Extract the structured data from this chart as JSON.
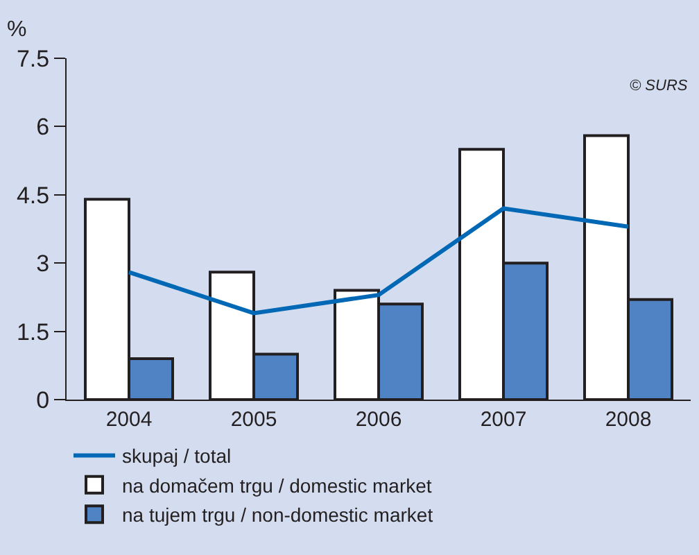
{
  "chart_data": {
    "type": "bar",
    "ylabel": "%",
    "categories": [
      "2004",
      "2005",
      "2006",
      "2007",
      "2008"
    ],
    "series": [
      {
        "name": "skupaj / total",
        "type": "line",
        "color": "#0068b4",
        "values": [
          2.8,
          1.9,
          2.3,
          4.2,
          3.8
        ]
      },
      {
        "name": "na domačem trgu / domestic market",
        "color": "#ffffff",
        "values": [
          4.4,
          2.8,
          2.4,
          5.5,
          5.8
        ]
      },
      {
        "name": "na tujem trgu / non-domestic market",
        "color": "#4f83c4",
        "values": [
          0.9,
          1.0,
          2.1,
          3.0,
          2.2
        ]
      }
    ],
    "ylim": [
      0,
      7.5
    ],
    "yticks": [
      0,
      1.5,
      3,
      4.5,
      6,
      7.5
    ],
    "grid": false,
    "legend": "bottom left",
    "marker": "none",
    "line_style": "solid",
    "annotations": [
      "© SURS"
    ]
  }
}
